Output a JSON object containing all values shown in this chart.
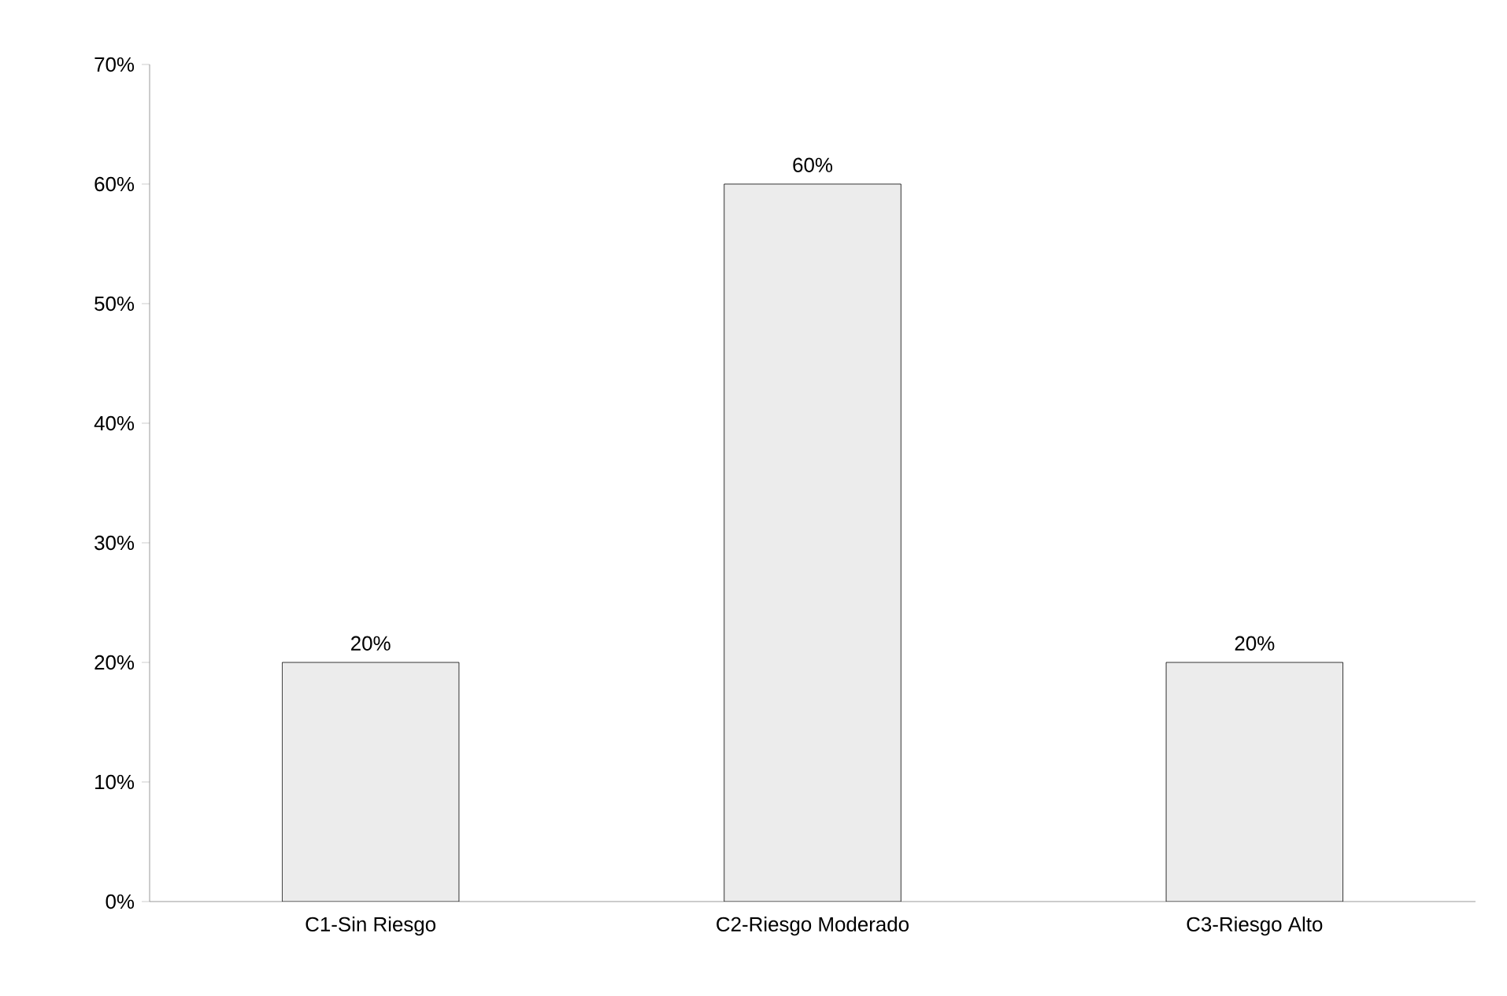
{
  "chart_data": {
    "type": "bar",
    "categories": [
      "C1-Sin Riesgo",
      "C2-Riesgo Moderado",
      "C3-Riesgo Alto"
    ],
    "values": [
      20,
      60,
      20
    ],
    "color": "#ececec",
    "value_labels": [
      "20%",
      "60%",
      "20%"
    ],
    "ylim": [
      0,
      70
    ],
    "yticks": [
      {
        "value": 0,
        "label": "0%"
      },
      {
        "value": 10,
        "label": "10%"
      },
      {
        "value": 20,
        "label": "20%"
      },
      {
        "value": 30,
        "label": "30%"
      },
      {
        "value": 40,
        "label": "40%"
      },
      {
        "value": 50,
        "label": "50%"
      },
      {
        "value": 60,
        "label": "60%"
      },
      {
        "value": 70,
        "label": "70%"
      }
    ],
    "grid": false,
    "legend": false
  }
}
